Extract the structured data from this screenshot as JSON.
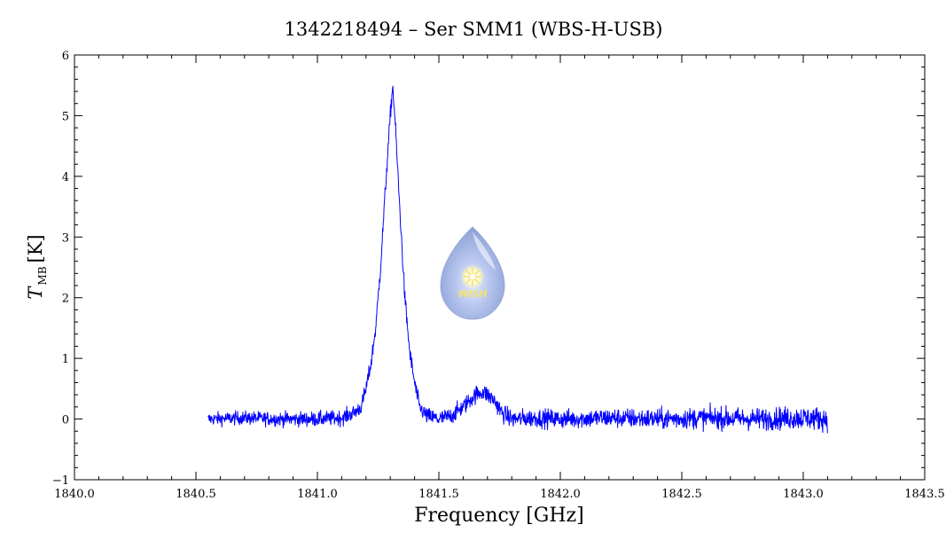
{
  "chart_data": {
    "type": "line",
    "title": "1342218494 – Ser SMM1 (WBS-H-USB)",
    "xlabel": "Frequency [GHz]",
    "ylabel": {
      "symbol": "T",
      "subscript": "MB",
      "unit": "[K]"
    },
    "xlim": [
      1840.0,
      1843.5
    ],
    "ylim": [
      -1,
      6
    ],
    "x_ticks": [
      "1840.0",
      "1840.5",
      "1841.0",
      "1841.5",
      "1842.0",
      "1842.5",
      "1843.0",
      "1843.5"
    ],
    "x_tick_values": [
      1840.0,
      1840.5,
      1841.0,
      1841.5,
      1842.0,
      1842.5,
      1843.0,
      1843.5
    ],
    "y_ticks": [
      "−1",
      "0",
      "1",
      "2",
      "3",
      "4",
      "5",
      "6"
    ],
    "y_tick_values": [
      -1,
      0,
      1,
      2,
      3,
      4,
      5,
      6
    ],
    "grid": false,
    "series": [
      {
        "color": "#0000ff",
        "x": [
          1840.55,
          1840.7,
          1840.85,
          1841.0,
          1841.1,
          1841.15,
          1841.18,
          1841.2,
          1841.22,
          1841.24,
          1841.26,
          1841.28,
          1841.3,
          1841.31,
          1841.32,
          1841.34,
          1841.36,
          1841.38,
          1841.4,
          1841.42,
          1841.45,
          1841.5,
          1841.55,
          1841.6,
          1841.65,
          1841.68,
          1841.7,
          1841.73,
          1841.76,
          1841.8,
          1841.9,
          1842.0,
          1842.2,
          1842.4,
          1842.6,
          1842.8,
          1843.0,
          1843.1
        ],
        "y": [
          0.0,
          0.02,
          0.0,
          0.0,
          0.02,
          0.1,
          0.2,
          0.5,
          0.9,
          1.5,
          2.5,
          3.8,
          5.0,
          5.5,
          4.9,
          3.4,
          2.0,
          1.1,
          0.6,
          0.2,
          0.05,
          0.0,
          0.05,
          0.2,
          0.4,
          0.45,
          0.4,
          0.3,
          0.1,
          0.0,
          0.02,
          0.0,
          0.02,
          0.0,
          0.02,
          0.0,
          0.02,
          0.0
        ]
      }
    ]
  },
  "logo": {
    "name": "wish-logo",
    "text": "WISH"
  }
}
